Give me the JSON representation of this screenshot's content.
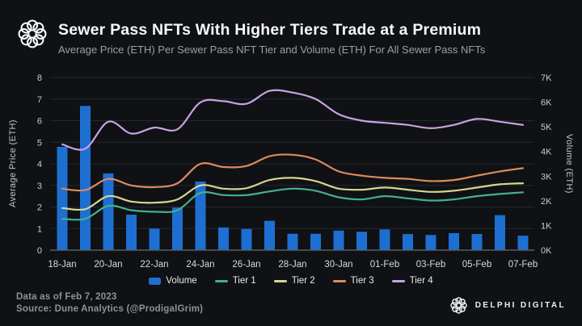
{
  "header": {
    "title": "Sewer Pass NFTs With Higher Tiers Trade at a Premium",
    "subtitle": "Average Price (ETH) Per Sewer Pass NFT Tier and Volume (ETH) For All Sewer Pass NFTs"
  },
  "chart_data": {
    "type": "bar",
    "subtype": "combo-bar-and-lines",
    "title": "Sewer Pass NFTs With Higher Tiers Trade at a Premium",
    "categories": [
      "18-Jan",
      "19-Jan",
      "20-Jan",
      "21-Jan",
      "22-Jan",
      "23-Jan",
      "24-Jan",
      "25-Jan",
      "26-Jan",
      "27-Jan",
      "28-Jan",
      "29-Jan",
      "30-Jan",
      "31-Jan",
      "01-Feb",
      "02-Feb",
      "03-Feb",
      "04-Feb",
      "05-Feb",
      "06-Feb",
      "07-Feb"
    ],
    "x_tick_labels_shown": [
      "18-Jan",
      "20-Jan",
      "22-Jan",
      "24-Jan",
      "26-Jan",
      "28-Jan",
      "30-Jan",
      "01-Feb",
      "03-Feb",
      "05-Feb",
      "07-Feb"
    ],
    "bar_series": {
      "name": "Volume",
      "axis": "right",
      "color": "#1e6fd2",
      "values_eth": [
        4190,
        5845,
        3110,
        1440,
        875,
        1725,
        2780,
        920,
        860,
        1190,
        665,
        665,
        790,
        745,
        840,
        650,
        615,
        690,
        655,
        1420,
        585
      ]
    },
    "line_series": [
      {
        "name": "Tier 1",
        "axis": "left",
        "color": "#45b08c",
        "values_eth": [
          1.45,
          1.45,
          2.05,
          1.85,
          1.78,
          1.85,
          2.65,
          2.55,
          2.55,
          2.72,
          2.85,
          2.75,
          2.45,
          2.35,
          2.5,
          2.4,
          2.3,
          2.35,
          2.5,
          2.6,
          2.68
        ]
      },
      {
        "name": "Tier 2",
        "axis": "left",
        "color": "#d5d78f",
        "values_eth": [
          1.95,
          1.9,
          2.5,
          2.25,
          2.2,
          2.35,
          3.0,
          2.85,
          2.87,
          3.25,
          3.35,
          3.2,
          2.85,
          2.8,
          2.9,
          2.8,
          2.7,
          2.75,
          2.9,
          3.05,
          3.1
        ]
      },
      {
        "name": "Tier 3",
        "axis": "left",
        "color": "#dd8a5e",
        "values_eth": [
          2.85,
          2.78,
          3.3,
          3.0,
          2.92,
          3.1,
          4.0,
          3.85,
          3.9,
          4.35,
          4.42,
          4.2,
          3.65,
          3.45,
          3.35,
          3.3,
          3.2,
          3.25,
          3.45,
          3.65,
          3.8
        ]
      },
      {
        "name": "Tier 4",
        "axis": "left",
        "color": "#c9a2e2",
        "values_eth": [
          4.9,
          4.7,
          5.95,
          5.4,
          5.68,
          5.6,
          6.85,
          6.9,
          6.78,
          7.38,
          7.3,
          7.0,
          6.3,
          6.0,
          5.9,
          5.8,
          5.65,
          5.8,
          6.08,
          5.95,
          5.8
        ]
      }
    ],
    "left_axis": {
      "title": "Average Price (ETH)",
      "min": 0,
      "max": 8,
      "ticks": [
        "0",
        "1",
        "2",
        "3",
        "4",
        "5",
        "6",
        "7",
        "8"
      ]
    },
    "right_axis": {
      "title": "Volume (ETH)",
      "min": 0,
      "max": 7000,
      "ticks": [
        "0K",
        "1K",
        "2K",
        "3K",
        "4K",
        "5K",
        "6K",
        "7K"
      ]
    },
    "grid": "horizontal-on",
    "legend_position": "bottom-center",
    "legend": [
      {
        "label": "Volume",
        "color": "#1e6fd2",
        "shape": "rect"
      },
      {
        "label": "Tier 1",
        "color": "#45b08c",
        "shape": "line"
      },
      {
        "label": "Tier 2",
        "color": "#d5d78f",
        "shape": "line"
      },
      {
        "label": "Tier 3",
        "color": "#dd8a5e",
        "shape": "line"
      },
      {
        "label": "Tier 4",
        "color": "#c9a2e2",
        "shape": "line"
      }
    ]
  },
  "footer": {
    "data_as_of": "Data as of Feb 7, 2023",
    "source": "Source: Dune Analytics (@ProdigalGrim)",
    "brand": "DELPHI DIGITAL"
  },
  "colors": {
    "background": "#0f1114",
    "grid": "#24282d",
    "axis_line": "#585c61",
    "tick_text": "#c9ccd0",
    "x_tick_text": "#d7dadd"
  }
}
